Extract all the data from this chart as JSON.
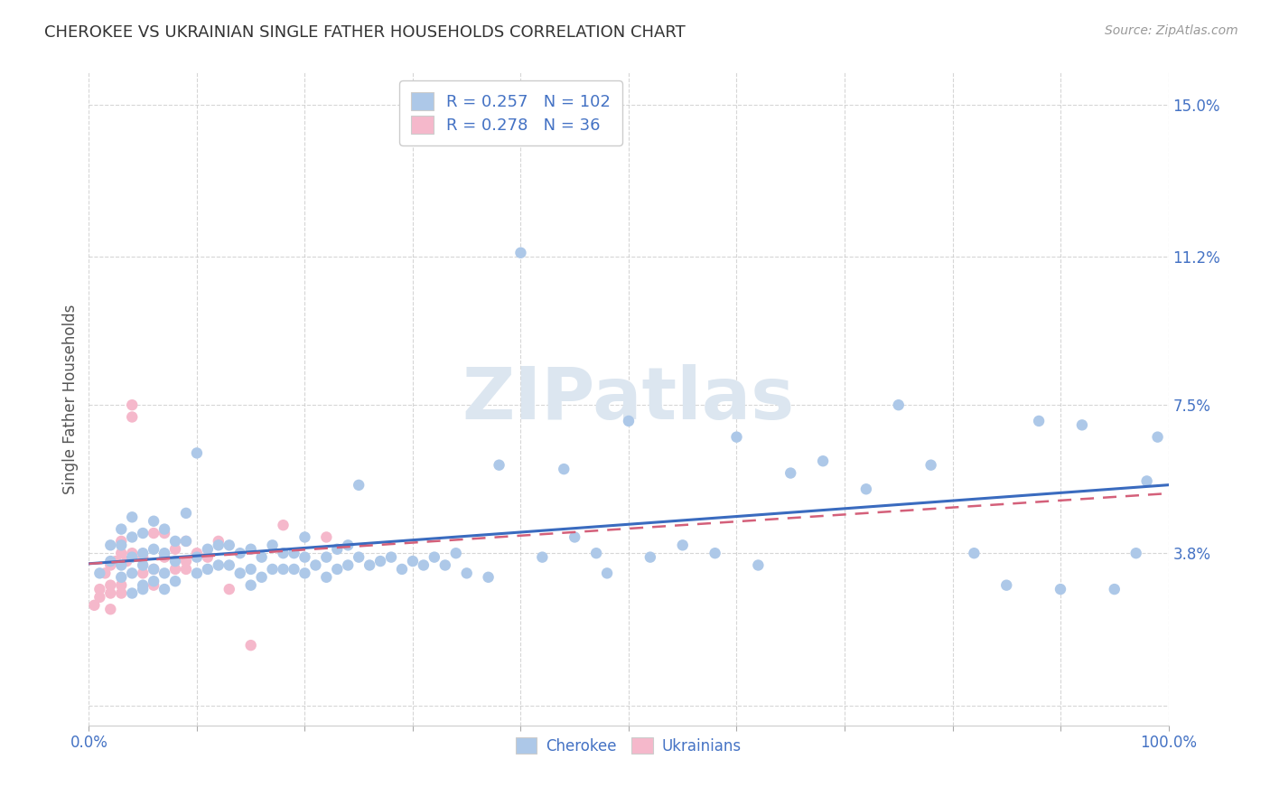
{
  "title": "CHEROKEE VS UKRAINIAN SINGLE FATHER HOUSEHOLDS CORRELATION CHART",
  "source": "Source: ZipAtlas.com",
  "ylabel": "Single Father Households",
  "yticks": [
    0.0,
    0.038,
    0.075,
    0.112,
    0.15
  ],
  "ytick_labels": [
    "",
    "3.8%",
    "7.5%",
    "11.2%",
    "15.0%"
  ],
  "xlim": [
    0.0,
    1.0
  ],
  "ylim": [
    -0.005,
    0.158
  ],
  "cherokee_R": 0.257,
  "cherokee_N": 102,
  "ukrainian_R": 0.278,
  "ukrainian_N": 36,
  "cherokee_color": "#adc8e8",
  "cherokee_line_color": "#3a6bbf",
  "ukrainian_color": "#f5b8cb",
  "ukrainian_line_color": "#d4607a",
  "background_color": "#ffffff",
  "grid_color": "#cccccc",
  "title_color": "#333333",
  "source_color": "#999999",
  "label_color": "#4472c4",
  "watermark_color": "#dce6f0",
  "legend_label_cherokee": "Cherokee",
  "legend_label_ukrainian": "Ukrainians",
  "cherokee_x": [
    0.01,
    0.02,
    0.02,
    0.03,
    0.03,
    0.03,
    0.03,
    0.04,
    0.04,
    0.04,
    0.04,
    0.04,
    0.05,
    0.05,
    0.05,
    0.05,
    0.05,
    0.06,
    0.06,
    0.06,
    0.06,
    0.07,
    0.07,
    0.07,
    0.07,
    0.08,
    0.08,
    0.08,
    0.09,
    0.09,
    0.1,
    0.1,
    0.1,
    0.11,
    0.11,
    0.12,
    0.12,
    0.13,
    0.13,
    0.14,
    0.14,
    0.15,
    0.15,
    0.15,
    0.16,
    0.16,
    0.17,
    0.17,
    0.18,
    0.18,
    0.19,
    0.19,
    0.2,
    0.2,
    0.2,
    0.21,
    0.22,
    0.22,
    0.23,
    0.23,
    0.24,
    0.24,
    0.25,
    0.25,
    0.26,
    0.27,
    0.28,
    0.29,
    0.3,
    0.31,
    0.32,
    0.33,
    0.34,
    0.35,
    0.37,
    0.38,
    0.4,
    0.42,
    0.44,
    0.45,
    0.47,
    0.48,
    0.5,
    0.52,
    0.55,
    0.58,
    0.6,
    0.62,
    0.65,
    0.68,
    0.72,
    0.75,
    0.78,
    0.82,
    0.85,
    0.88,
    0.9,
    0.92,
    0.95,
    0.97,
    0.98,
    0.99
  ],
  "cherokee_y": [
    0.033,
    0.036,
    0.04,
    0.032,
    0.035,
    0.04,
    0.044,
    0.028,
    0.033,
    0.037,
    0.042,
    0.047,
    0.03,
    0.035,
    0.038,
    0.043,
    0.029,
    0.031,
    0.034,
    0.039,
    0.046,
    0.029,
    0.033,
    0.038,
    0.044,
    0.031,
    0.036,
    0.041,
    0.041,
    0.048,
    0.033,
    0.037,
    0.063,
    0.034,
    0.039,
    0.035,
    0.04,
    0.035,
    0.04,
    0.033,
    0.038,
    0.03,
    0.034,
    0.039,
    0.032,
    0.037,
    0.034,
    0.04,
    0.034,
    0.038,
    0.034,
    0.038,
    0.033,
    0.037,
    0.042,
    0.035,
    0.032,
    0.037,
    0.034,
    0.039,
    0.035,
    0.04,
    0.037,
    0.055,
    0.035,
    0.036,
    0.037,
    0.034,
    0.036,
    0.035,
    0.037,
    0.035,
    0.038,
    0.033,
    0.032,
    0.06,
    0.113,
    0.037,
    0.059,
    0.042,
    0.038,
    0.033,
    0.071,
    0.037,
    0.04,
    0.038,
    0.067,
    0.035,
    0.058,
    0.061,
    0.054,
    0.075,
    0.06,
    0.038,
    0.03,
    0.071,
    0.029,
    0.07,
    0.029,
    0.038,
    0.056,
    0.067
  ],
  "ukrainian_x": [
    0.005,
    0.01,
    0.01,
    0.015,
    0.02,
    0.02,
    0.02,
    0.02,
    0.025,
    0.03,
    0.03,
    0.03,
    0.03,
    0.035,
    0.04,
    0.04,
    0.04,
    0.05,
    0.05,
    0.06,
    0.06,
    0.06,
    0.07,
    0.07,
    0.08,
    0.08,
    0.09,
    0.09,
    0.09,
    0.1,
    0.11,
    0.12,
    0.13,
    0.15,
    0.18,
    0.22
  ],
  "ukrainian_y": [
    0.025,
    0.029,
    0.027,
    0.033,
    0.028,
    0.03,
    0.024,
    0.035,
    0.036,
    0.038,
    0.041,
    0.03,
    0.028,
    0.036,
    0.072,
    0.075,
    0.038,
    0.033,
    0.037,
    0.034,
    0.043,
    0.03,
    0.043,
    0.037,
    0.034,
    0.039,
    0.036,
    0.041,
    0.034,
    0.038,
    0.037,
    0.041,
    0.029,
    0.015,
    0.045,
    0.042
  ]
}
